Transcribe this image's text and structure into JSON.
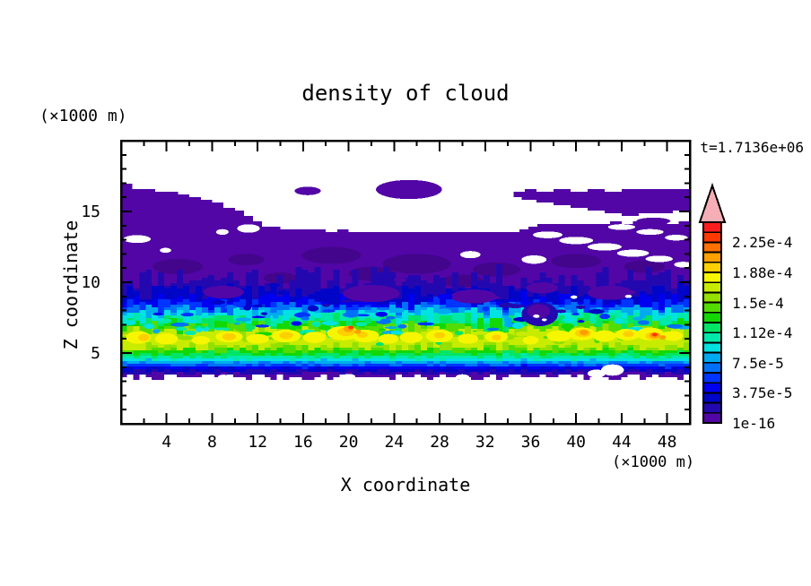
{
  "chart_data": {
    "type": "contour-heatmap",
    "title": "density of cloud",
    "timestamp": "t=1.7136e+06",
    "x_axis": {
      "label": "X coordinate",
      "unit": "(×1000 m)",
      "range": [
        0,
        50
      ],
      "major_ticks": [
        4,
        8,
        12,
        16,
        20,
        24,
        28,
        32,
        36,
        40,
        44,
        48
      ],
      "minor_step": 2
    },
    "z_axis": {
      "label": "Z coordinate",
      "unit": "(×1000 m)",
      "range": [
        0,
        20
      ],
      "major_ticks": [
        5,
        10,
        15
      ],
      "minor_step": 1
    },
    "colorbar": {
      "labels": [
        "1e-16",
        "3.75e-5",
        "7.5e-5",
        "1.12e-4",
        "1.5e-4",
        "1.88e-4",
        "2.25e-4"
      ],
      "label_every_n_segments": 3,
      "segment_colors": [
        "#5206a6",
        "#2308b0",
        "#0005c8",
        "#0000f0",
        "#0034ff",
        "#0070f8",
        "#00aaf0",
        "#00e2e2",
        "#00e9ac",
        "#00e566",
        "#12d806",
        "#52dc00",
        "#94e000",
        "#c8ec00",
        "#f6f600",
        "#ffd000",
        "#ffa000",
        "#ff7000",
        "#ff3a00",
        "#ff1e1e"
      ],
      "overflow_color": "#f6aeb6",
      "border_color": "#000000"
    },
    "field": {
      "cloud_top_edge": [
        [
          0,
          16.9
        ],
        [
          1,
          16.62
        ],
        [
          2,
          16.55
        ],
        [
          3,
          16.4
        ],
        [
          4,
          16.3
        ],
        [
          5,
          16.15
        ],
        [
          6,
          16.0
        ],
        [
          7,
          15.85
        ],
        [
          8,
          15.6
        ],
        [
          9,
          15.3
        ],
        [
          10,
          15.0
        ],
        [
          10.8,
          14.6
        ],
        [
          11.6,
          14.25
        ],
        [
          12.4,
          14.0
        ],
        [
          13.2,
          13.9
        ],
        [
          14,
          13.82
        ],
        [
          15,
          13.76
        ],
        [
          16,
          13.7
        ],
        [
          17,
          13.64
        ],
        [
          18,
          13.6
        ],
        [
          19,
          13.66
        ],
        [
          20,
          13.6
        ],
        [
          21,
          13.54
        ],
        [
          22,
          13.6
        ],
        [
          23,
          13.52
        ],
        [
          24,
          13.58
        ],
        [
          25,
          13.5
        ],
        [
          26,
          13.56
        ],
        [
          27,
          13.48
        ],
        [
          28,
          13.54
        ],
        [
          29,
          13.48
        ],
        [
          30,
          13.54
        ],
        [
          31,
          13.5
        ],
        [
          32,
          13.56
        ],
        [
          33,
          13.5
        ],
        [
          34,
          13.58
        ],
        [
          35,
          13.7
        ],
        [
          35.8,
          13.88
        ],
        [
          36.6,
          14.05
        ],
        [
          37.4,
          14.15
        ],
        [
          38.2,
          14.05
        ],
        [
          39,
          14.18
        ],
        [
          40,
          14.08
        ],
        [
          41,
          14.2
        ],
        [
          42,
          14.1
        ],
        [
          43,
          14.22
        ],
        [
          44,
          14.12
        ],
        [
          45,
          14.24
        ],
        [
          46,
          14.14
        ],
        [
          47,
          14.26
        ],
        [
          48,
          14.16
        ],
        [
          49,
          14.28
        ],
        [
          50,
          14.2
        ]
      ],
      "bottom_edge": {
        "z": 3.3,
        "amp": 0.18,
        "seed": 7
      },
      "upper_right_band": [
        [
          33.8,
          16.05
        ],
        [
          34.5,
          16.45
        ],
        [
          35.5,
          16.55
        ],
        [
          36.5,
          16.45
        ],
        [
          38,
          16.58
        ],
        [
          39.5,
          16.48
        ],
        [
          41,
          16.58
        ],
        [
          42.5,
          16.48
        ],
        [
          44,
          16.58
        ],
        [
          45.5,
          16.5
        ],
        [
          47,
          16.6
        ],
        [
          48.5,
          16.52
        ],
        [
          50,
          16.6
        ],
        [
          50,
          15.05
        ],
        [
          48.5,
          14.95
        ],
        [
          47,
          14.8
        ],
        [
          45.5,
          14.68
        ],
        [
          44,
          14.85
        ],
        [
          42.5,
          15.05
        ],
        [
          41,
          15.25
        ],
        [
          39.5,
          15.45
        ],
        [
          38,
          15.68
        ],
        [
          36.5,
          15.88
        ],
        [
          35.2,
          16.0
        ],
        [
          34.2,
          15.98
        ]
      ],
      "top_blobs": [
        [
          16.4,
          16.45,
          1.15,
          0.3
        ],
        [
          25.3,
          16.55,
          2.9,
          0.68
        ],
        [
          46.8,
          14.32,
          1.5,
          0.24
        ],
        [
          49.2,
          13.9,
          1.0,
          0.22
        ]
      ],
      "dark_patches": [
        [
          5,
          11.1,
          2.2,
          0.55
        ],
        [
          11,
          11.6,
          1.6,
          0.4
        ],
        [
          18.5,
          11.9,
          2.6,
          0.6
        ],
        [
          26,
          11.3,
          3.0,
          0.7
        ],
        [
          33,
          10.9,
          2.1,
          0.5
        ],
        [
          40,
          11.5,
          2.2,
          0.5
        ],
        [
          46,
          11.1,
          1.8,
          0.45
        ],
        [
          14,
          10.3,
          1.5,
          0.4
        ],
        [
          30,
          10.1,
          1.8,
          0.45
        ],
        [
          22,
          10.6,
          2.0,
          0.5
        ]
      ],
      "bands": [
        {
          "level": 1,
          "zt": 10.35,
          "at": 0.85,
          "zb": 3.55,
          "ab": 0.12,
          "seed": 11
        },
        {
          "level": 2,
          "zt": 9.3,
          "at": 0.6,
          "zb": 3.75,
          "ab": 0.1,
          "seed": 22
        },
        {
          "level": 3,
          "zt": 8.8,
          "at": 0.5,
          "zb": 3.9,
          "ab": 0.1,
          "seed": 33
        },
        {
          "level": 4,
          "zt": 8.45,
          "at": 0.45,
          "zb": 4.05,
          "ab": 0.1,
          "seed": 44
        },
        {
          "level": 5,
          "zt": 8.2,
          "at": 0.4,
          "zb": 4.18,
          "ab": 0.1,
          "seed": 55
        },
        {
          "level": 6,
          "zt": 8.0,
          "at": 0.4,
          "zb": 4.3,
          "ab": 0.1,
          "seed": 66
        },
        {
          "level": 7,
          "zt": 7.8,
          "at": 0.45,
          "zb": 4.45,
          "ab": 0.1,
          "seed": 77
        },
        {
          "level": 8,
          "zt": 7.55,
          "at": 0.45,
          "zb": 4.6,
          "ab": 0.12,
          "seed": 88
        },
        {
          "level": 9,
          "zt": 7.3,
          "at": 0.5,
          "zb": 4.78,
          "ab": 0.14,
          "seed": 99
        },
        {
          "level": 10,
          "zt": 7.0,
          "at": 0.55,
          "zb": 4.98,
          "ab": 0.18,
          "seed": 111
        },
        {
          "level": 11,
          "zt": 6.78,
          "at": 0.55,
          "zb": 5.2,
          "ab": 0.22,
          "seed": 122
        },
        {
          "level": 12,
          "zt": 6.6,
          "at": 0.5,
          "zb": 5.38,
          "ab": 0.26,
          "seed": 133
        },
        {
          "level": 13,
          "zt": 6.45,
          "at": 0.45,
          "zb": 5.5,
          "ab": 0.3,
          "seed": 144
        }
      ],
      "indigo_patches": [
        [
          9,
          9.3,
          1.8,
          0.45
        ],
        [
          22,
          9.2,
          2.5,
          0.6
        ],
        [
          31,
          9.0,
          2.0,
          0.5
        ],
        [
          43,
          9.25,
          2.0,
          0.5
        ],
        [
          37,
          9.6,
          1.4,
          0.4
        ]
      ],
      "hot_spots": [
        {
          "level": 14,
          "blobs": [
            [
              1.5,
              6.1,
              1.1,
              0.45
            ],
            [
              4,
              6.0,
              1.0,
              0.4
            ],
            [
              7,
              5.9,
              0.8,
              0.3
            ],
            [
              9.5,
              6.15,
              1.2,
              0.4
            ],
            [
              12,
              6.0,
              1.0,
              0.35
            ],
            [
              14.5,
              6.2,
              1.3,
              0.45
            ],
            [
              17,
              6.1,
              1.0,
              0.4
            ],
            [
              19.5,
              6.4,
              1.4,
              0.5
            ],
            [
              21.5,
              6.2,
              1.2,
              0.45
            ],
            [
              23.5,
              6.0,
              0.9,
              0.35
            ],
            [
              25.5,
              6.1,
              1.0,
              0.4
            ],
            [
              28,
              6.2,
              1.2,
              0.45
            ],
            [
              30.5,
              6.0,
              0.9,
              0.35
            ],
            [
              33,
              6.15,
              1.0,
              0.4
            ],
            [
              36,
              5.9,
              0.7,
              0.3
            ],
            [
              38.5,
              6.2,
              1.1,
              0.4
            ],
            [
              40.5,
              6.35,
              1.2,
              0.45
            ],
            [
              42.5,
              6.2,
              1.0,
              0.4
            ],
            [
              44.5,
              6.3,
              1.1,
              0.4
            ],
            [
              46.5,
              6.35,
              1.2,
              0.45
            ],
            [
              48.5,
              6.2,
              0.9,
              0.35
            ]
          ]
        },
        {
          "level": 15,
          "blobs": [
            [
              2,
              6.1,
              0.5,
              0.25
            ],
            [
              9.5,
              6.15,
              0.6,
              0.25
            ],
            [
              14.5,
              6.25,
              0.6,
              0.25
            ],
            [
              19.8,
              6.5,
              0.8,
              0.3
            ],
            [
              21.2,
              6.3,
              0.5,
              0.22
            ],
            [
              28,
              6.25,
              0.5,
              0.22
            ],
            [
              33,
              6.1,
              0.4,
              0.2
            ],
            [
              40.6,
              6.4,
              0.7,
              0.28
            ],
            [
              44.6,
              6.35,
              0.5,
              0.22
            ],
            [
              46.8,
              6.2,
              0.7,
              0.28
            ]
          ]
        },
        {
          "level": 16,
          "blobs": [
            [
              20,
              6.7,
              0.45,
              0.22
            ],
            [
              20.8,
              6.5,
              0.3,
              0.15
            ],
            [
              40.7,
              6.45,
              0.4,
              0.2
            ],
            [
              46.9,
              6.25,
              0.45,
              0.22
            ],
            [
              47.6,
              6.1,
              0.3,
              0.15
            ]
          ]
        },
        {
          "level": 18,
          "blobs": [
            [
              20.2,
              6.8,
              0.24,
              0.12
            ],
            [
              46.9,
              6.3,
              0.25,
              0.12
            ]
          ]
        }
      ],
      "dip": {
        "navy": [
          36.8,
          7.75,
          1.6,
          0.85
        ],
        "indigo": [
          36.7,
          7.95,
          1.0,
          0.5
        ],
        "whites": [
          [
            36.5,
            7.6,
            0.28,
            0.12
          ],
          [
            37.2,
            7.35,
            0.22,
            0.1
          ]
        ]
      },
      "white_holes": [
        [
          1.4,
          13.05,
          1.2,
          0.28
        ],
        [
          3.9,
          12.25,
          0.5,
          0.18
        ],
        [
          8.9,
          13.55,
          0.55,
          0.2
        ],
        [
          11.2,
          13.8,
          1.0,
          0.3
        ],
        [
          30.7,
          11.95,
          0.9,
          0.25
        ],
        [
          36.3,
          11.6,
          1.1,
          0.3
        ],
        [
          39.8,
          8.95,
          0.3,
          0.12
        ],
        [
          44.6,
          9.0,
          0.3,
          0.12
        ],
        [
          37.5,
          13.35,
          1.3,
          0.24
        ],
        [
          40,
          12.95,
          1.5,
          0.26
        ],
        [
          42.5,
          12.5,
          1.5,
          0.26
        ],
        [
          45,
          12.05,
          1.4,
          0.25
        ],
        [
          47.3,
          11.65,
          1.2,
          0.23
        ],
        [
          49.4,
          11.25,
          0.8,
          0.2
        ],
        [
          44,
          13.9,
          1.2,
          0.2
        ],
        [
          46.5,
          13.55,
          1.2,
          0.2
        ],
        [
          48.8,
          13.15,
          1.0,
          0.2
        ]
      ],
      "white_bottom_notches": [
        [
          41.8,
          3.55,
          0.8,
          0.28
        ],
        [
          43.2,
          3.8,
          1.0,
          0.4
        ],
        [
          20,
          3.32,
          0.6,
          0.2
        ],
        [
          9,
          3.3,
          0.5,
          0.18
        ],
        [
          30,
          3.3,
          0.6,
          0.2
        ]
      ]
    }
  }
}
